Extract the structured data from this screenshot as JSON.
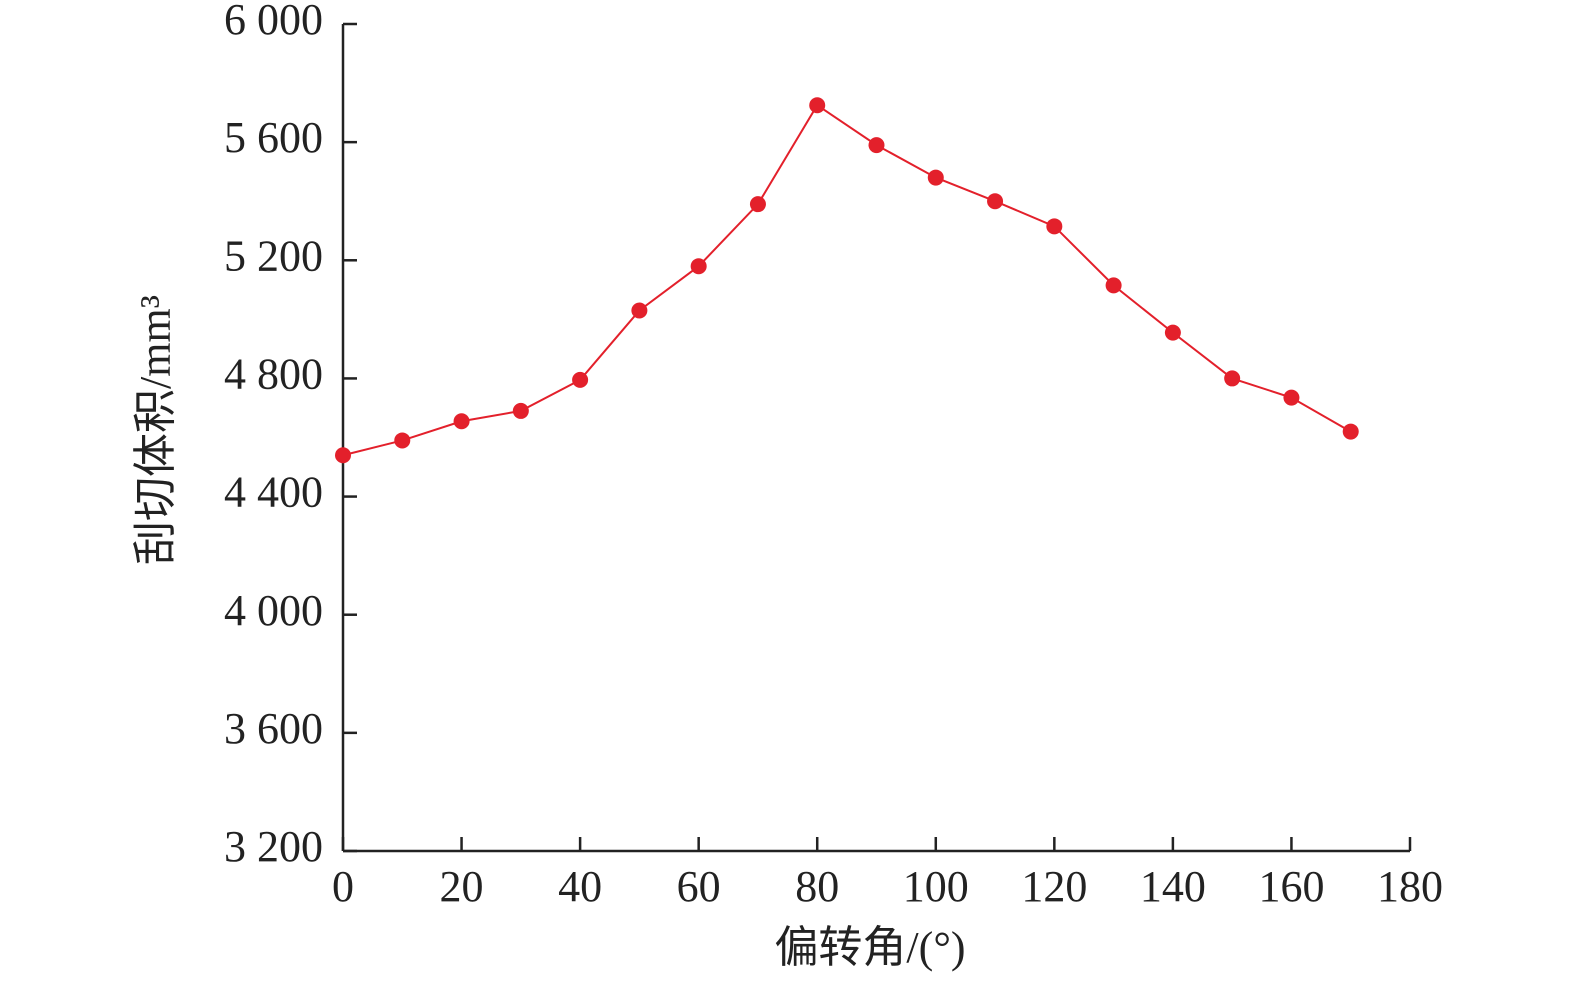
{
  "chart_data": {
    "type": "line",
    "x_label": "偏转角/(°)",
    "y_label": "刮切体积/mm³",
    "x": [
      0,
      10,
      20,
      30,
      40,
      50,
      60,
      70,
      80,
      90,
      100,
      110,
      120,
      130,
      140,
      150,
      160,
      170
    ],
    "series": [
      {
        "name": "刮切体积",
        "color": "#e3202b",
        "values": [
          4540,
          4590,
          4655,
          4690,
          4795,
          5030,
          5180,
          5390,
          5725,
          5590,
          5480,
          5400,
          5315,
          5115,
          4955,
          4800,
          4735,
          4620
        ]
      }
    ],
    "xlim": [
      0,
      180
    ],
    "xticks": [
      0,
      20,
      40,
      60,
      80,
      100,
      120,
      140,
      160,
      180
    ],
    "ylim": [
      3200,
      6000
    ],
    "yticks": [
      {
        "value": 3200,
        "label": "3 200"
      },
      {
        "value": 3600,
        "label": "3 600"
      },
      {
        "value": 4000,
        "label": "4 000"
      },
      {
        "value": 4400,
        "label": "4 400"
      },
      {
        "value": 4800,
        "label": "4 800"
      },
      {
        "value": 5200,
        "label": "5 200"
      },
      {
        "value": 5600,
        "label": "5 600"
      },
      {
        "value": 6000,
        "label": "6 000"
      }
    ],
    "grid": false
  }
}
